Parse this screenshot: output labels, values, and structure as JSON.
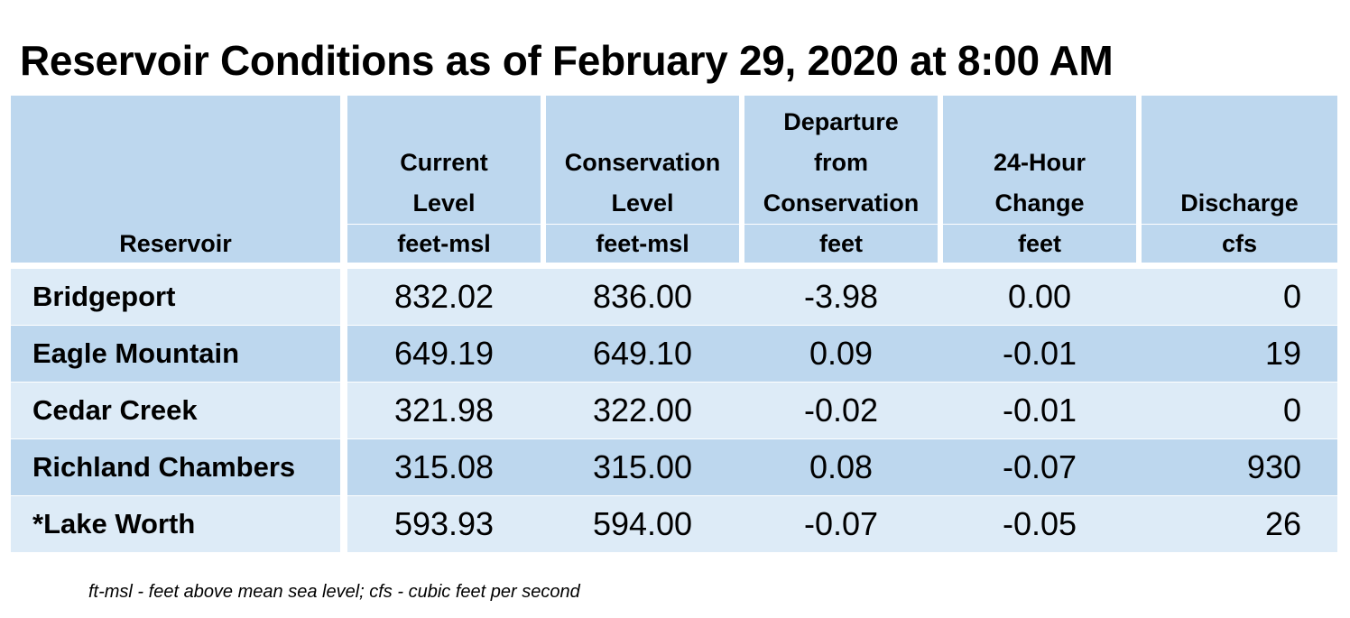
{
  "title": "Reservoir Conditions as of February 29, 2020 at 8:00 AM",
  "columns": [
    {
      "key": "reservoir",
      "header": [
        "Reservoir"
      ],
      "unit": ""
    },
    {
      "key": "current",
      "header": [
        "Current",
        "Level"
      ],
      "unit": "feet-msl"
    },
    {
      "key": "conservation",
      "header": [
        "Conservation",
        "Level"
      ],
      "unit": "feet-msl"
    },
    {
      "key": "departure",
      "header": [
        "Departure",
        "from",
        "Conservation"
      ],
      "unit": "feet"
    },
    {
      "key": "change",
      "header": [
        "24-Hour",
        "Change"
      ],
      "unit": "feet"
    },
    {
      "key": "discharge",
      "header": [
        "Discharge"
      ],
      "unit": "cfs"
    }
  ],
  "rows": [
    {
      "reservoir": "Bridgeport",
      "current": "832.02",
      "conservation": "836.00",
      "departure": "-3.98",
      "change": "0.00",
      "discharge": "0"
    },
    {
      "reservoir": "Eagle Mountain",
      "current": "649.19",
      "conservation": "649.10",
      "departure": "0.09",
      "change": "-0.01",
      "discharge": "19"
    },
    {
      "reservoir": "Cedar Creek",
      "current": "321.98",
      "conservation": "322.00",
      "departure": "-0.02",
      "change": "-0.01",
      "discharge": "0"
    },
    {
      "reservoir": "Richland Chambers",
      "current": "315.08",
      "conservation": "315.00",
      "departure": "0.08",
      "change": "-0.07",
      "discharge": "930"
    },
    {
      "reservoir": "*Lake Worth",
      "current": "593.93",
      "conservation": "594.00",
      "departure": "-0.07",
      "change": "-0.05",
      "discharge": "26"
    }
  ],
  "footnote": "ft-msl - feet above mean sea level; cfs - cubic feet per second",
  "colors": {
    "header_bg": "#bdd7ee",
    "row_light": "#ddebf7",
    "row_dark": "#bdd7ee"
  }
}
